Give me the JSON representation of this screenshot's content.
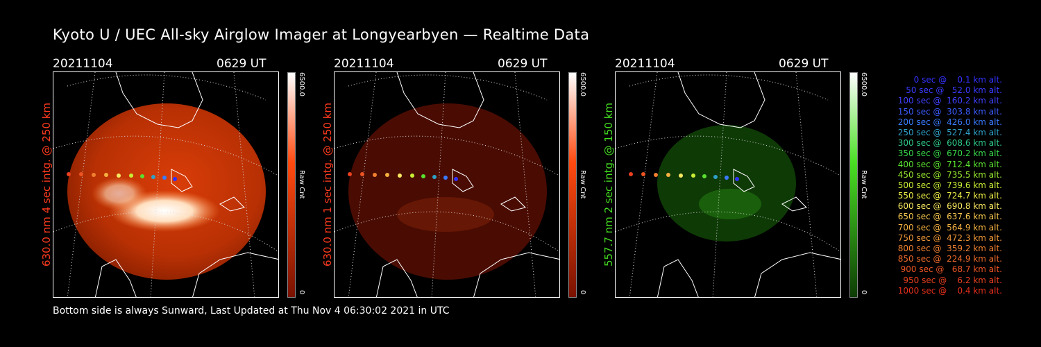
{
  "title": "Kyoto U / UEC All-sky Airglow Imager at Longyearbyen — Realtime Data",
  "panels": [
    {
      "date": "20211104",
      "time": "0629 UT",
      "ylabel": "630.0 nm 4 sec intg. @ 250 km",
      "label_color": "#ff3b1f",
      "cbar_max": "6500.0",
      "cbar_min": "0",
      "cbar_unit": "Raw Cnt",
      "cbar_top": "#ffffff",
      "cbar_mid": "#ff4a10",
      "cbar_low": "#7a1200"
    },
    {
      "date": "20211104",
      "time": "0629 UT",
      "ylabel": "630.0 nm 1 sec intg. @ 250 km",
      "label_color": "#ff3b1f",
      "cbar_max": "6500.0",
      "cbar_min": "0",
      "cbar_unit": "Raw Cnt",
      "cbar_top": "#ffffff",
      "cbar_mid": "#ff4a10",
      "cbar_low": "#7a1200"
    },
    {
      "date": "20211104",
      "time": "0629 UT",
      "ylabel": "557.7 nm 2 sec intg. @ 150 km",
      "label_color": "#44dd22",
      "cbar_max": "6500.0",
      "cbar_min": "0",
      "cbar_unit": "Raw Cnt",
      "cbar_top": "#ffffff",
      "cbar_mid": "#4ae024",
      "cbar_low": "#0d3c05"
    }
  ],
  "legend": [
    {
      "text": "   0 sec @    0.1 km alt.",
      "color": "#3232ff"
    },
    {
      "text": "  50 sec @   52.0 km alt.",
      "color": "#3a3aff"
    },
    {
      "text": " 100 sec @  160.2 km alt.",
      "color": "#4040ff"
    },
    {
      "text": " 150 sec @  303.8 km alt.",
      "color": "#3b5bff"
    },
    {
      "text": " 200 sec @  426.0 km alt.",
      "color": "#3a7aff"
    },
    {
      "text": " 250 sec @  527.4 km alt.",
      "color": "#2fa0c8"
    },
    {
      "text": " 300 sec @  608.6 km alt.",
      "color": "#2ec88a"
    },
    {
      "text": " 350 sec @  670.2 km alt.",
      "color": "#38d84a"
    },
    {
      "text": " 400 sec @  712.4 km alt.",
      "color": "#5ae030"
    },
    {
      "text": " 450 sec @  735.5 km alt.",
      "color": "#98e830"
    },
    {
      "text": " 500 sec @  739.6 km alt.",
      "color": "#c8ee36"
    },
    {
      "text": " 550 sec @  724.7 km alt.",
      "color": "#eef048"
    },
    {
      "text": " 600 sec @  690.8 km alt.",
      "color": "#f8e860"
    },
    {
      "text": " 650 sec @  637.6 km alt.",
      "color": "#f8c850"
    },
    {
      "text": " 700 sec @  564.9 km alt.",
      "color": "#f5b040"
    },
    {
      "text": " 750 sec @  472.3 km alt.",
      "color": "#f39838"
    },
    {
      "text": " 800 sec @  359.2 km alt.",
      "color": "#f08030"
    },
    {
      "text": " 850 sec @  224.9 km alt.",
      "color": "#ee6a2a"
    },
    {
      "text": " 900 sec @   68.7 km alt.",
      "color": "#ec5424"
    },
    {
      "text": " 950 sec @    6.2 km alt.",
      "color": "#ea4020"
    },
    {
      "text": "1000 sec @    0.4 km alt.",
      "color": "#e8301c"
    }
  ],
  "footer": "Bottom side is always Sunward, Last Updated at Thu Nov  4 06:30:02 2021 in UTC"
}
